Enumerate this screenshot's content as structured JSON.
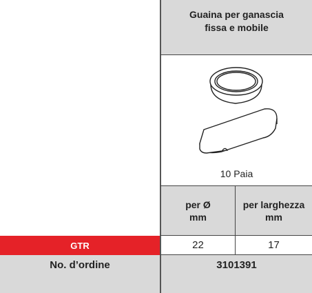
{
  "header": {
    "title": "Guaina per ganascia\nfissa e mobile"
  },
  "image": {
    "caption": "10 Paia"
  },
  "table": {
    "columns": [
      "per Ø\nmm",
      "per larghezza\nmm"
    ],
    "rows": [
      {
        "label": "GTR",
        "values": [
          22,
          17
        ]
      },
      {
        "label": "No. d’ordine",
        "value": 3101391
      }
    ]
  }
}
